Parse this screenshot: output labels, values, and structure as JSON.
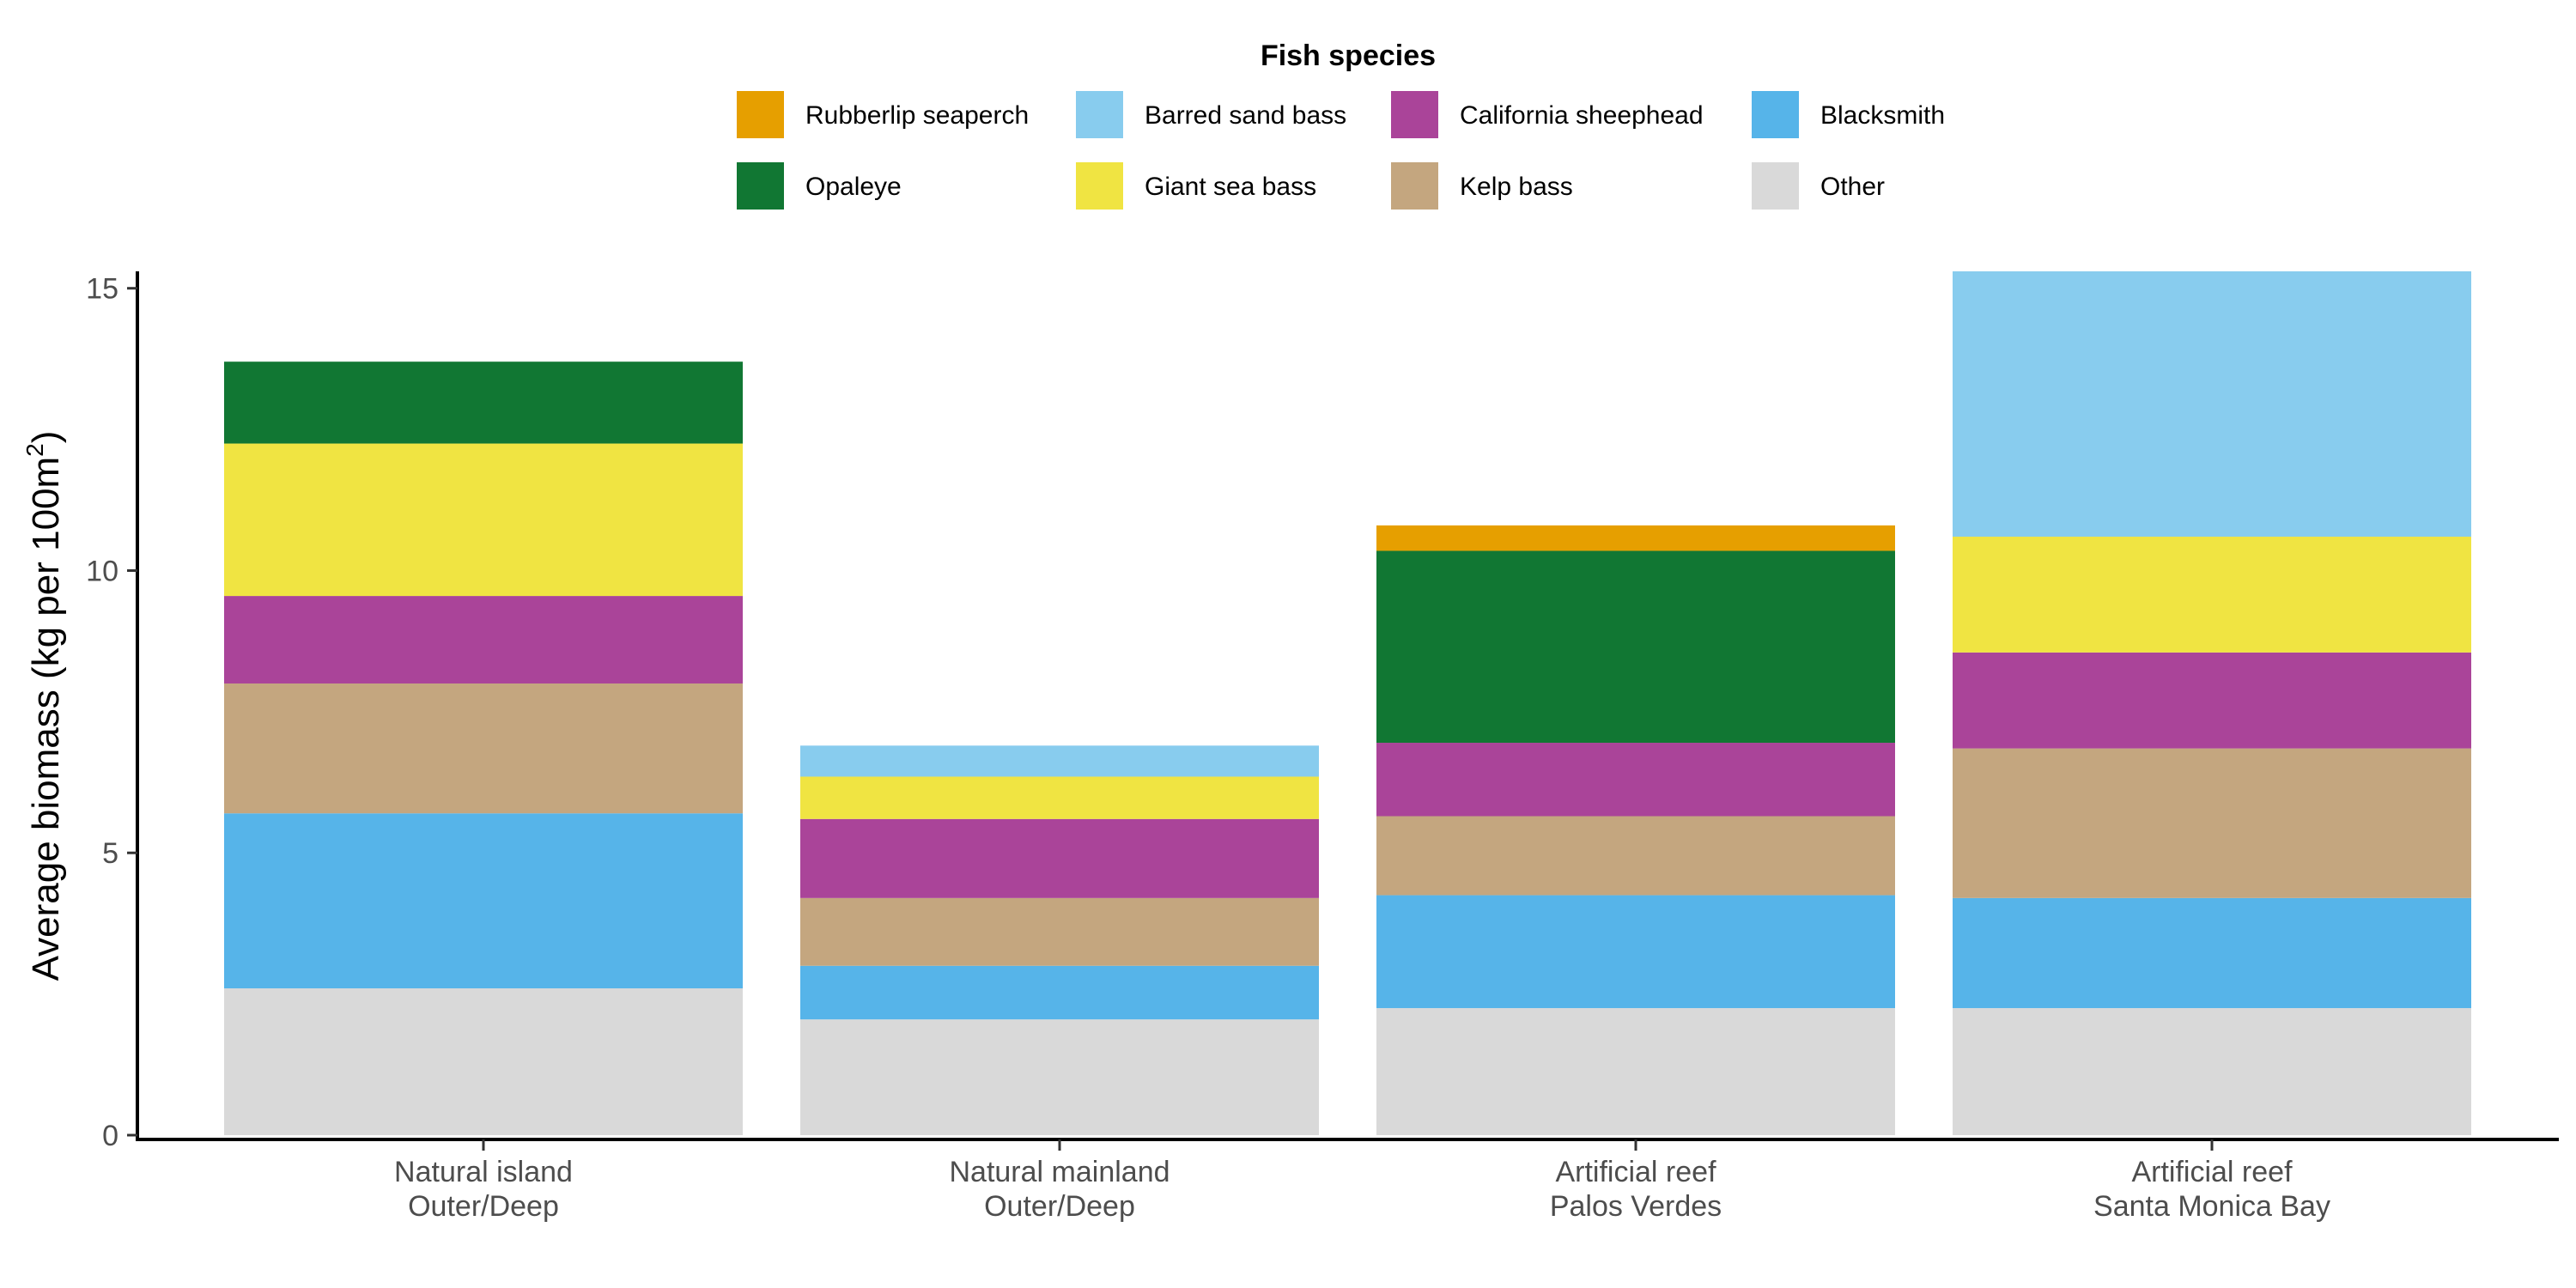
{
  "chart_data": {
    "type": "bar",
    "stacked": true,
    "title": "",
    "xlabel": "",
    "ylabel": "Average biomass (kg per 100m",
    "ylabel_sup": "2",
    "ylabel_close": ")",
    "ylim": [
      0,
      15.3
    ],
    "yticks": [
      0,
      5,
      10,
      15
    ],
    "grid": false,
    "legend": {
      "title": "Fish species",
      "placement": "top"
    },
    "categories": [
      [
        "Natural island",
        "Outer/Deep"
      ],
      [
        "Natural mainland",
        "Outer/Deep"
      ],
      [
        "Artificial reef",
        "Palos Verdes"
      ],
      [
        "Artificial reef",
        "Santa Monica Bay"
      ]
    ],
    "series": [
      {
        "name": "Other",
        "color": "#d9d9d9",
        "values": [
          2.6,
          2.05,
          2.25,
          2.25
        ]
      },
      {
        "name": "Blacksmith",
        "color": "#56b4e9",
        "values": [
          3.1,
          0.95,
          2.0,
          1.95
        ]
      },
      {
        "name": "Kelp bass",
        "color": "#c4a67f",
        "values": [
          2.3,
          1.2,
          1.4,
          2.65
        ]
      },
      {
        "name": "California sheephead",
        "color": "#aa4499",
        "values": [
          1.55,
          1.4,
          1.3,
          1.7
        ]
      },
      {
        "name": "Giant sea bass",
        "color": "#f0e442",
        "values": [
          2.7,
          0.75,
          0.0,
          2.05
        ]
      },
      {
        "name": "Opaleye",
        "color": "#117733",
        "values": [
          1.45,
          0.0,
          3.4,
          0.0
        ]
      },
      {
        "name": "Barred sand bass",
        "color": "#88ccee",
        "values": [
          0.0,
          0.55,
          0.0,
          4.7
        ]
      },
      {
        "name": "Rubberlip seaperch",
        "color": "#e69f00",
        "values": [
          0.0,
          0.0,
          0.45,
          0.0
        ]
      }
    ],
    "legend_order": [
      "Rubberlip seaperch",
      "Barred sand bass",
      "California sheephead",
      "Blacksmith",
      "Opaleye",
      "Giant sea bass",
      "Kelp bass",
      "Other"
    ]
  }
}
